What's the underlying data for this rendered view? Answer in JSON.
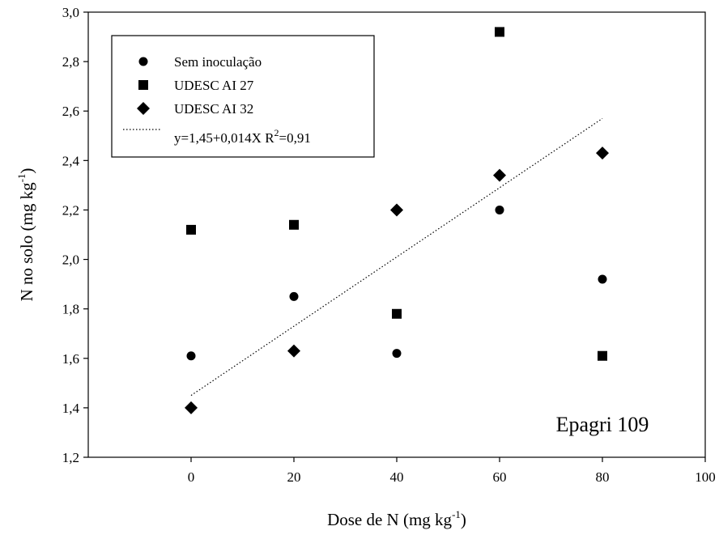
{
  "chart_data": {
    "type": "scatter",
    "xlabel_main": "Dose de N (mg kg",
    "xlabel_sup": "-1",
    "xlabel_end": ")",
    "ylabel_main": "N no solo (mg kg",
    "ylabel_sup": "-1",
    "ylabel_end": ")",
    "xlim": [
      -20,
      100
    ],
    "ylim": [
      1.2,
      3.0
    ],
    "xticks": [
      0,
      20,
      40,
      60,
      80,
      100
    ],
    "xtick_labels": [
      "0",
      "20",
      "40",
      "60",
      "80",
      "100"
    ],
    "yticks": [
      1.2,
      1.4,
      1.6,
      1.8,
      2.0,
      2.2,
      2.4,
      2.6,
      2.8,
      3.0
    ],
    "ytick_labels": [
      "1,2",
      "1,4",
      "1,6",
      "1,8",
      "2,0",
      "2,2",
      "2,4",
      "2,6",
      "2,8",
      "3,0"
    ],
    "series": [
      {
        "name": "Sem inoculação",
        "marker": "circle",
        "x": [
          0,
          20,
          40,
          60,
          80
        ],
        "y": [
          1.61,
          1.85,
          1.62,
          2.2,
          1.92
        ]
      },
      {
        "name": "UDESC AI 27",
        "marker": "square",
        "x": [
          0,
          20,
          40,
          60,
          80
        ],
        "y": [
          2.12,
          2.14,
          1.78,
          2.92,
          1.61
        ]
      },
      {
        "name": "UDESC AI 32",
        "marker": "diamond",
        "x": [
          0,
          20,
          40,
          60,
          80
        ],
        "y": [
          1.4,
          1.63,
          2.2,
          2.34,
          2.43
        ]
      }
    ],
    "trendline": {
      "label_main": "y=1,45+0,014X R",
      "label_sup": "2",
      "label_end": "=0,91",
      "intercept": 1.45,
      "slope": 0.014,
      "x_range": [
        0,
        80
      ],
      "style": "dotted"
    },
    "annotation": "Epagri 109",
    "grid": false,
    "legend_position": "top-left",
    "colors": {
      "marker": "#000000",
      "line": "#000000",
      "background": "#ffffff"
    }
  }
}
